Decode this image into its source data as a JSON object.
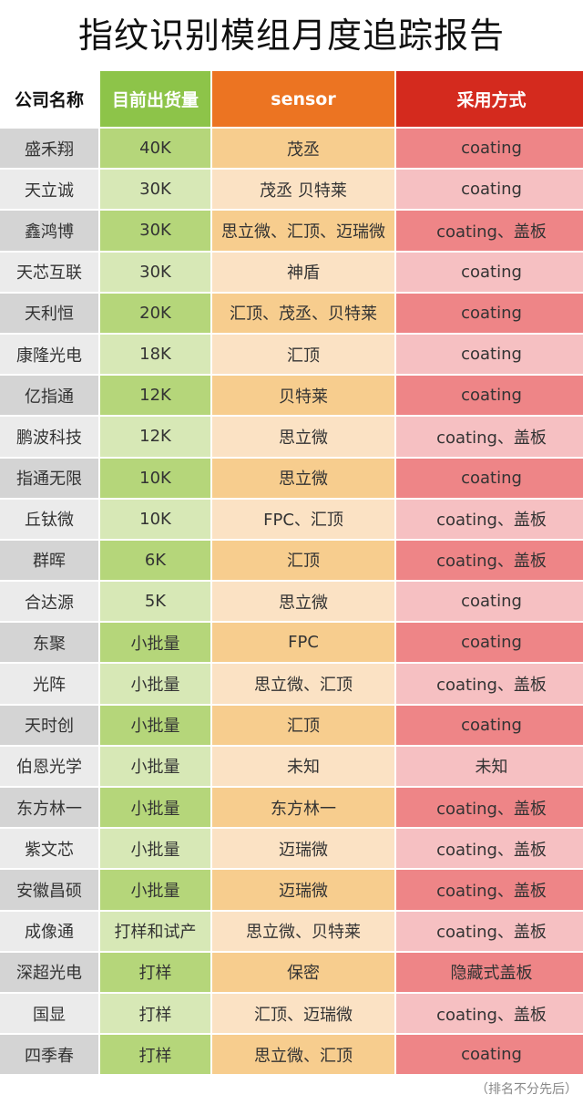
{
  "title": "指纹识别模组月度追踪报告",
  "headers": [
    "公司名称",
    "目前出货量",
    "sensor",
    "采用方式"
  ],
  "rows": [
    [
      "盛禾翔",
      "40K",
      "茂丞",
      "coating"
    ],
    [
      "天立诚",
      "30K",
      "茂丞 贝特莱",
      "coating"
    ],
    [
      "鑫鸿博",
      "30K",
      "思立微、汇顶、迈瑞微",
      "coating、盖板"
    ],
    [
      "天芯互联",
      "30K",
      "神盾",
      "coating"
    ],
    [
      "天利恒",
      "20K",
      "汇顶、茂丞、贝特莱",
      "coating"
    ],
    [
      "康隆光电",
      "18K",
      "汇顶",
      "coating"
    ],
    [
      "亿指通",
      "12K",
      "贝特莱",
      "coating"
    ],
    [
      "鹏波科技",
      "12K",
      "思立微",
      "coating、盖板"
    ],
    [
      "指通无限",
      "10K",
      "思立微",
      "coating"
    ],
    [
      "丘钛微",
      "10K",
      "FPC、汇顶",
      "coating、盖板"
    ],
    [
      "群晖",
      "6K",
      "汇顶",
      "coating、盖板"
    ],
    [
      "合达源",
      "5K",
      "思立微",
      "coating"
    ],
    [
      "东聚",
      "小批量",
      "FPC",
      "coating"
    ],
    [
      "光阵",
      "小批量",
      "思立微、汇顶",
      "coating、盖板"
    ],
    [
      "天时创",
      "小批量",
      "汇顶",
      "coating"
    ],
    [
      "伯恩光学",
      "小批量",
      "未知",
      "未知"
    ],
    [
      "东方林一",
      "小批量",
      "东方林一",
      "coating、盖板"
    ],
    [
      "紫文芯",
      "小批量",
      "迈瑞微",
      "coating、盖板"
    ],
    [
      "安徽昌硕",
      "小批量",
      "迈瑞微",
      "coating、盖板"
    ],
    [
      "成像通",
      "打样和试产",
      "思立微、贝特莱",
      "coating、盖板"
    ],
    [
      "深超光电",
      "打样",
      "保密",
      "隐藏式盖板"
    ],
    [
      "国显",
      "打样",
      "汇顶、迈瑞微",
      "coating、盖板"
    ],
    [
      "四季春",
      "打样",
      "思立微、汇顶",
      "coating"
    ]
  ],
  "note": "（排名不分先后）",
  "colors": {
    "header_shipment": "#8dc449",
    "header_sensor": "#ec7422",
    "header_method": "#d42a1e"
  }
}
